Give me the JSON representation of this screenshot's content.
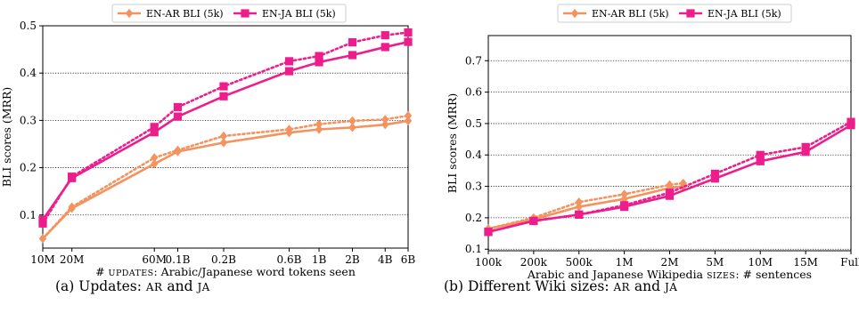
{
  "chart_data": [
    {
      "type": "line",
      "caption": "(a) Updates: AR and JA",
      "ylabel": "BLI scores (MRR)",
      "xlabel_prefix": "# ",
      "xlabel_sc": "UPDATES",
      "xlabel_rest": ": Arabic/Japanese word tokens seen",
      "x_ticks": [
        "10M",
        "20M",
        "60M",
        "0.1B",
        "0.2B",
        "0.6B",
        "1B",
        "2B",
        "4B",
        "6B"
      ],
      "y_ticks": [
        "0.1",
        "0.2",
        "0.3",
        "0.4",
        "0.5"
      ],
      "ylim": [
        0.03,
        0.5
      ],
      "legend": [
        "EN-AR BLI (5k)",
        "EN-JA BLI (5k)"
      ],
      "series": [
        {
          "name": "EN-AR BLI (5k)",
          "color": "#f4935f",
          "style": "solid",
          "marker": "diamond",
          "values": [
            0.05,
            0.114,
            0.208,
            0.234,
            0.253,
            0.274,
            0.281,
            0.285,
            0.291,
            0.299
          ]
        },
        {
          "name": "EN-AR BLI (5k)",
          "color": "#f4935f",
          "style": "dotted",
          "marker": "diamond",
          "values": [
            0.05,
            0.117,
            0.221,
            0.237,
            0.267,
            0.281,
            0.292,
            0.299,
            0.302,
            0.31
          ]
        },
        {
          "name": "EN-JA BLI (5k)",
          "color": "#ee1d8c",
          "style": "solid",
          "marker": "square",
          "values": [
            0.09,
            0.178,
            0.275,
            0.308,
            0.351,
            0.404,
            0.423,
            0.438,
            0.455,
            0.466
          ]
        },
        {
          "name": "EN-JA BLI (5k)",
          "color": "#ee1d8c",
          "style": "dotted",
          "marker": "square",
          "values": [
            0.082,
            0.181,
            0.286,
            0.328,
            0.372,
            0.425,
            0.436,
            0.465,
            0.48,
            0.486
          ]
        }
      ]
    },
    {
      "type": "line",
      "caption": "(b) Different Wiki sizes: AR and JA",
      "ylabel": "BLI scores (MRR)",
      "xlabel_prefix": "Arabic and Japanese Wikipedia ",
      "xlabel_sc": "SIZES",
      "xlabel_rest": ": # sentences",
      "x_ticks": [
        "100k",
        "200k",
        "500k",
        "1M",
        "2M",
        "5M",
        "10M",
        "15M",
        "Full"
      ],
      "y_ticks": [
        "0.1",
        "0.2",
        "0.3",
        "0.4",
        "0.5",
        "0.6",
        "0.7"
      ],
      "ylim": [
        0.095,
        0.78
      ],
      "legend": [
        "EN-AR BLI (5k)",
        "EN-JA BLI (5k)"
      ],
      "series": [
        {
          "name": "EN-AR BLI (5k)",
          "color": "#f4935f",
          "style": "solid",
          "marker": "diamond",
          "x": [
            0,
            1,
            2,
            3,
            4,
            4.3
          ],
          "values": [
            0.165,
            0.195,
            0.235,
            0.26,
            0.295,
            0.3
          ]
        },
        {
          "name": "EN-AR BLI (5k)",
          "color": "#f4935f",
          "style": "dotted",
          "marker": "diamond",
          "x": [
            0,
            1,
            2,
            3,
            4,
            4.3
          ],
          "values": [
            0.165,
            0.2,
            0.25,
            0.275,
            0.305,
            0.31
          ]
        },
        {
          "name": "EN-JA BLI (5k)",
          "color": "#ee1d8c",
          "style": "solid",
          "marker": "square",
          "x": [
            0,
            1,
            2,
            3,
            4,
            5,
            6,
            7,
            8
          ],
          "values": [
            0.155,
            0.19,
            0.21,
            0.235,
            0.27,
            0.325,
            0.38,
            0.41,
            0.495
          ]
        },
        {
          "name": "EN-JA BLI (5k)",
          "color": "#ee1d8c",
          "style": "dotted",
          "marker": "square",
          "x": [
            0,
            1,
            2,
            3,
            4,
            5,
            6,
            7,
            8
          ],
          "values": [
            0.155,
            0.19,
            0.21,
            0.24,
            0.28,
            0.34,
            0.4,
            0.425,
            0.505
          ]
        }
      ]
    }
  ]
}
